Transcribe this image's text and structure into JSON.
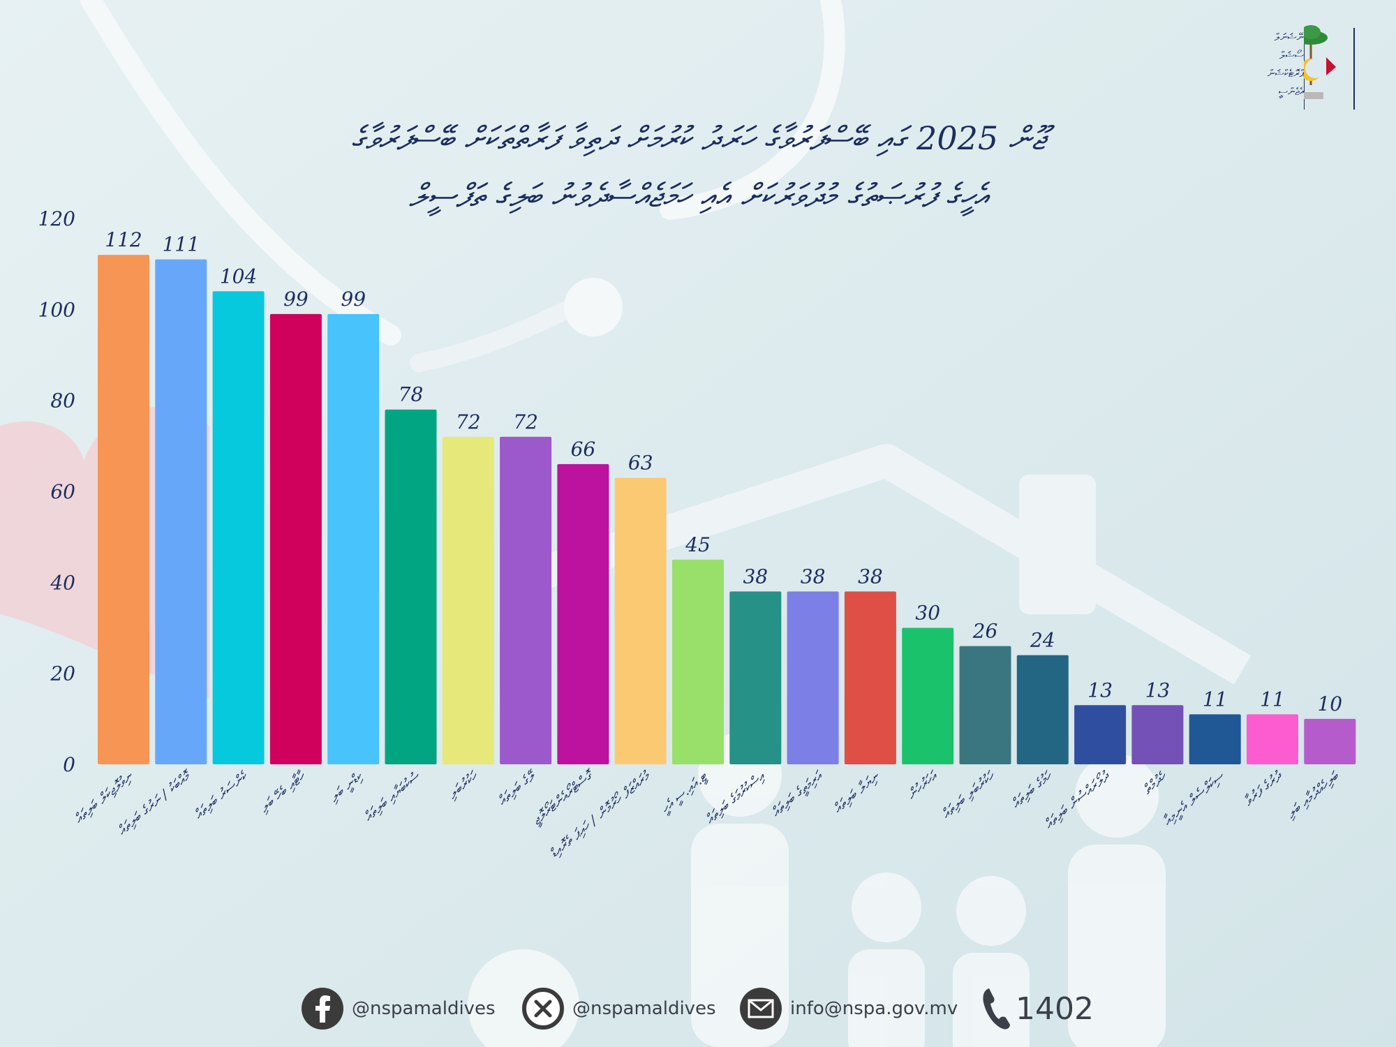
{
  "title": {
    "line1": "ޖޫން 2025 ގައި ބޭސްފަރުވާގެ ހަރަދު ކުރުމަށް ދަތިވާ ފަރާތްތަކަށް ބޭސްފަރުވާގެ",
    "line2": "އެހީގެ ފުރުޞަތުގެ މުދުވަރުކަށް އެއި ހަމަޖެއްސާދެވުނު ބަލިގެ ތަފްސީލް"
  },
  "logo": {
    "text_lines": [
      "ނޭޝަނަލް",
      "ސޯޝަލް",
      "ޕްރޮޓެކްޝަން",
      "އެޖެންސީ"
    ],
    "icon": "maldives-emblem-icon"
  },
  "colors": {
    "title": "#1c2d5c",
    "axis_text": "#1c2d5c",
    "background": "#dde9ec"
  },
  "chart_data": {
    "type": "bar",
    "ylim": [
      0,
      120
    ],
    "yticks": [
      0,
      20,
      40,
      60,
      80,
      100,
      120
    ],
    "grid": false,
    "legend": "none",
    "categories": [
      "ނިވުލޮޖިކަލް ބަލިތައް",
      "މޮއްބަކު / ނަރުގެ ބަލިތައް",
      "ކެންސަރު ބަލިތައް",
      "ހާޓާއި ބެހޭ ބަލި",
      "ކިޑްނީ ބަލި",
      "ސުކުބަޔާއި ބަލިތައް",
      "ހަކުރުބަލި",
      "ލޭގެ ބަލިތައް",
      "ގޮސްޓްރޯއެންޓަރޯލޮޖީ",
      "މުރައްޒަފް ހޯރުމޮން / ހައިޕަ ތެރޮއިޑް",
      "ޓީ.އައި.ސީ އެހީ",
      "އިސްކުރުމަގެ ބަލިތައް",
      "އަރިމަތީގެ ބަލިތައް",
      "ނިޔަލާ ބަލިތައް",
      "އަހަރުހުން",
      "ހަކުރުބަލި ބަލިތައް",
      "ހަމުގެ ބަލިތައް",
      "ދުލޯރައްސުން ބަލިތައް",
      "ހެދުމްތް",
      "ސިކަލްސެލް އެނީމިއާ",
      "ދުރުގެ ފަރުވާ",
      "ބަލިހެއްދުމާއި ބަލި"
    ],
    "values": [
      112,
      111,
      104,
      99,
      99,
      78,
      72,
      72,
      66,
      63,
      45,
      38,
      38,
      38,
      30,
      26,
      24,
      13,
      13,
      11,
      11,
      10
    ],
    "colors": [
      "#f79654",
      "#66a7fa",
      "#07c9dd",
      "#d0005d",
      "#48c3fc",
      "#02a581",
      "#e6e87a",
      "#9b59cc",
      "#bd12a0",
      "#fcc973",
      "#98e06a",
      "#259187",
      "#7b7fe6",
      "#df4f46",
      "#1bc26c",
      "#3a767f",
      "#236684",
      "#2f4e9f",
      "#7451b7",
      "#1f5894",
      "#fd5bd0",
      "#b65bcc"
    ]
  },
  "footer": {
    "facebook_handle": "@nspamaldives",
    "x_handle": "@nspamaldives",
    "email": "info@nspa.gov.mv",
    "phone": "1402",
    "icons": [
      "facebook-icon",
      "x-icon",
      "email-icon",
      "phone-icon"
    ]
  }
}
